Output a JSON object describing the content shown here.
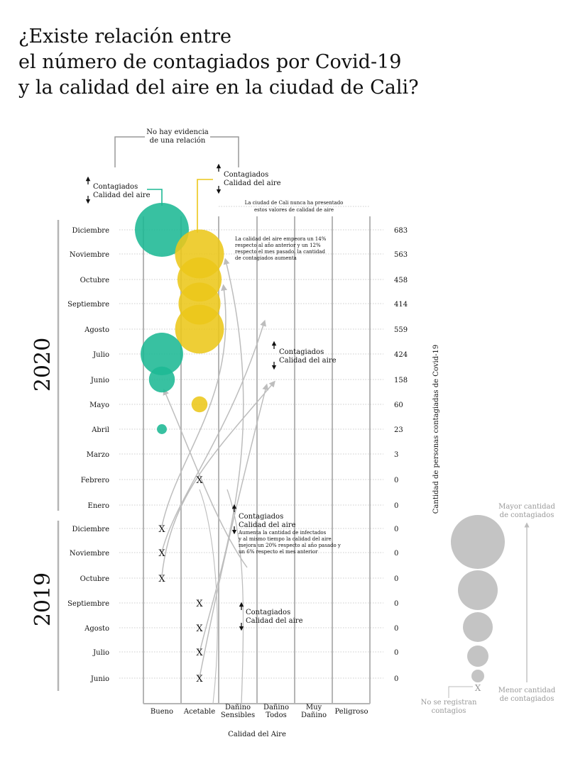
{
  "title": {
    "lines": [
      "¿Existe relación entre",
      "el número de contagiados por Covid-19",
      "y la calidad del aire en la ciudad de Cali?"
    ]
  },
  "annotations": {
    "no_evidence": [
      "No hay evidencia",
      "de una relación"
    ],
    "legend_green": [
      "Contagiados",
      "Calidad del aire"
    ],
    "legend_yellow": [
      "Contagiados",
      "Calidad del aire"
    ],
    "never_values": [
      "La ciudad de Cali nunca ha presentado",
      "estos valores de calidad de aire"
    ],
    "nov_note": [
      "La calidad del aire empeora un 14%",
      "respecto al año anterior y un 12%",
      "respecto el mes pasado. la cantidad",
      "de contagiados aumenta"
    ],
    "mid_trend": [
      "Contagiados",
      "Calidad del aire"
    ],
    "dic_trend": [
      "Contagiados",
      "Calidad del aire"
    ],
    "dic_note": [
      "Aumenta la cantidad de infectados",
      "y al mismo tiempo la calidad del aire",
      "mejora un 20% respecto al año pasado y",
      "un 6% respecto el mes anterior"
    ],
    "sep_trend": [
      "Contagiados",
      "Calidad del aire"
    ]
  },
  "size_legend": {
    "max_label": [
      "Mayor cantidad",
      "de contagiados"
    ],
    "min_label": [
      "Menor cantidad",
      "de contagiados"
    ],
    "none_label": [
      "No se registran",
      "contagios"
    ],
    "none_marker": "X"
  },
  "colors": {
    "green": "#1db894",
    "yellow": "#ecc71a",
    "gray_bubble": "#c4c4c4",
    "axis_gray": "#b5b5b5",
    "curve_gray": "#bdbdbd"
  },
  "chart_data": {
    "type": "scatter",
    "xlabel": "Calidad del Aire",
    "ylabel": "Cantidad de personas contagiadas de Covid-19",
    "categories": [
      [
        "Bueno"
      ],
      [
        "Acetable"
      ],
      [
        "Dañino",
        "Sensibles"
      ],
      [
        "Dañino",
        "Todos"
      ],
      [
        "Muy",
        "Dañino"
      ],
      [
        "Peligroso"
      ]
    ],
    "years": [
      "2020",
      "2019"
    ],
    "no_cases_marker": "X",
    "rows": [
      {
        "year": "2020",
        "month": "Diciembre",
        "quality": "Bueno",
        "cases": 683
      },
      {
        "year": "2020",
        "month": "Noviembre",
        "quality": "Acetable",
        "cases": 563
      },
      {
        "year": "2020",
        "month": "Octubre",
        "quality": "Acetable",
        "cases": 458
      },
      {
        "year": "2020",
        "month": "Septiembre",
        "quality": "Acetable",
        "cases": 414
      },
      {
        "year": "2020",
        "month": "Agosto",
        "quality": "Acetable",
        "cases": 559
      },
      {
        "year": "2020",
        "month": "Julio",
        "quality": "Bueno",
        "cases": 424
      },
      {
        "year": "2020",
        "month": "Junio",
        "quality": "Bueno",
        "cases": 158
      },
      {
        "year": "2020",
        "month": "Mayo",
        "quality": "Acetable",
        "cases": 60
      },
      {
        "year": "2020",
        "month": "Abril",
        "quality": "Bueno",
        "cases": 23
      },
      {
        "year": "2020",
        "month": "Marzo",
        "quality": null,
        "cases": 3
      },
      {
        "year": "2020",
        "month": "Febrero",
        "quality": "Acetable",
        "cases": 0
      },
      {
        "year": "2020",
        "month": "Enero",
        "quality": null,
        "cases": 0
      },
      {
        "year": "2019",
        "month": "Diciembre",
        "quality": "Bueno",
        "cases": 0
      },
      {
        "year": "2019",
        "month": "Noviembre",
        "quality": "Bueno",
        "cases": 0
      },
      {
        "year": "2019",
        "month": "Octubre",
        "quality": "Bueno",
        "cases": 0
      },
      {
        "year": "2019",
        "month": "Septiembre",
        "quality": "Acetable",
        "cases": 0
      },
      {
        "year": "2019",
        "month": "Agosto",
        "quality": "Acetable",
        "cases": 0
      },
      {
        "year": "2019",
        "month": "Julio",
        "quality": "Acetable",
        "cases": 0
      },
      {
        "year": "2019",
        "month": "Junio",
        "quality": "Acetable",
        "cases": 0
      }
    ]
  }
}
